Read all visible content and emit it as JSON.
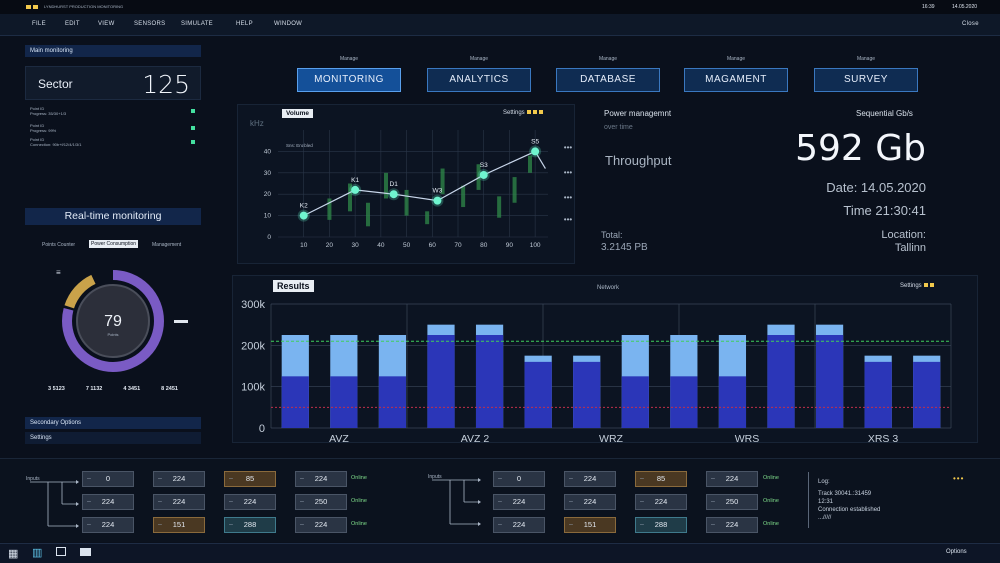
{
  "titlebar": {
    "left_text": "LYNDHURST PRODUCTION MONITORING",
    "clock": "16:39",
    "date": "14.05.2020"
  },
  "menu": {
    "items": [
      "FILE",
      "EDIT",
      "VIEW",
      "SENSORS",
      "SIMULATE",
      "HELP",
      "WINDOW"
    ],
    "close": "Close"
  },
  "left": {
    "main_monitoring": "Main monitoring",
    "sector_label": "Sector",
    "sector_value": "125",
    "rows": [
      {
        "title": "Point ID",
        "detail": "Progress: 35/30+1/3"
      },
      {
        "title": "Point ID",
        "detail": "Progress: 99%"
      },
      {
        "title": "Point ID",
        "detail": "Connection: 90b+f/12/4/1/3/1"
      }
    ],
    "realtime_title": "Real-time monitoring",
    "subtabs": [
      "Points Counter",
      "Power Consumption",
      "Management"
    ],
    "donut": {
      "value": "79",
      "sub": "Points",
      "fraction": 0.79,
      "color": "#7a5bc4",
      "accent": "#c9a24a"
    },
    "stats": [
      "3 5123",
      "7 1132",
      "4 3451",
      "8 2451"
    ],
    "secondary_options": "Secondary Options",
    "settings": "Settings"
  },
  "tabs": [
    {
      "manage": "Manage",
      "label": "MONITORING"
    },
    {
      "manage": "Manage",
      "label": "ANALYTICS"
    },
    {
      "manage": "Manage",
      "label": "DATABASE"
    },
    {
      "manage": "Manage",
      "label": "MAGAMENT"
    },
    {
      "manage": "Manage",
      "label": "SURVEY"
    }
  ],
  "volume": {
    "title": "Volume",
    "settings": "Settings",
    "unit": "kHz",
    "status": "Sns: Enabled",
    "chart_data": {
      "type": "line",
      "x": [
        10,
        30,
        45,
        62,
        80,
        100
      ],
      "y": [
        10,
        22,
        20,
        17,
        29,
        40
      ],
      "point_labels": [
        "K2",
        "K1",
        "D1",
        "W3",
        "S3",
        "S5"
      ],
      "xticks": [
        "10",
        "20",
        "30",
        "40",
        "50",
        "60",
        "70",
        "80",
        "90",
        "100"
      ],
      "yticks": [
        "0",
        "10",
        "20",
        "30",
        "40"
      ],
      "xlim": [
        0,
        105
      ],
      "ylim": [
        0,
        50
      ]
    }
  },
  "stats_panel": {
    "power_title": "Power managemnt",
    "over_time": "over time",
    "throughput": "Throughput",
    "total_label": "Total:",
    "total_value": "3.2145 PB",
    "seq_title": "Sequential Gb/s",
    "big_value": "592 Gb",
    "date": "Date: 14.05.2020",
    "time": "Time 21:30:41",
    "location_label": "Location:",
    "location_value": "Tallinn"
  },
  "results": {
    "title": "Results",
    "network": "Network",
    "settings": "Settings",
    "chart_data": {
      "type": "bar",
      "yticks": [
        "0",
        "100k",
        "200k",
        "300k"
      ],
      "ylim": [
        0,
        300000
      ],
      "categories": [
        "AVZ",
        "AVZ 2",
        "WRZ",
        "WRS",
        "XRS 3"
      ],
      "bars_total": [
        225000,
        225000,
        225000,
        250000,
        250000,
        175000,
        175000,
        225000,
        225000,
        225000,
        250000,
        250000,
        175000,
        175000
      ],
      "bars_inner": [
        125000,
        125000,
        125000,
        225000,
        225000,
        160000,
        160000,
        125000,
        125000,
        125000,
        225000,
        225000,
        160000,
        160000
      ],
      "green_line": 210000,
      "red_line": 50000
    }
  },
  "bottom": {
    "inputs_label": "Inputs",
    "grid_left": [
      [
        "0",
        "224",
        "85",
        "224"
      ],
      [
        "224",
        "224",
        "224",
        "250"
      ],
      [
        "224",
        "151",
        "288",
        "224"
      ]
    ],
    "grid_right": [
      [
        "0",
        "224",
        "85",
        "224"
      ],
      [
        "224",
        "224",
        "224",
        "250"
      ],
      [
        "224",
        "151",
        "288",
        "224"
      ]
    ],
    "online": "Online",
    "log_title": "Log:",
    "log_lines": [
      "Track 30041.:31459",
      "12:31",
      "Connection established",
      ".../////"
    ],
    "options": "Options"
  }
}
